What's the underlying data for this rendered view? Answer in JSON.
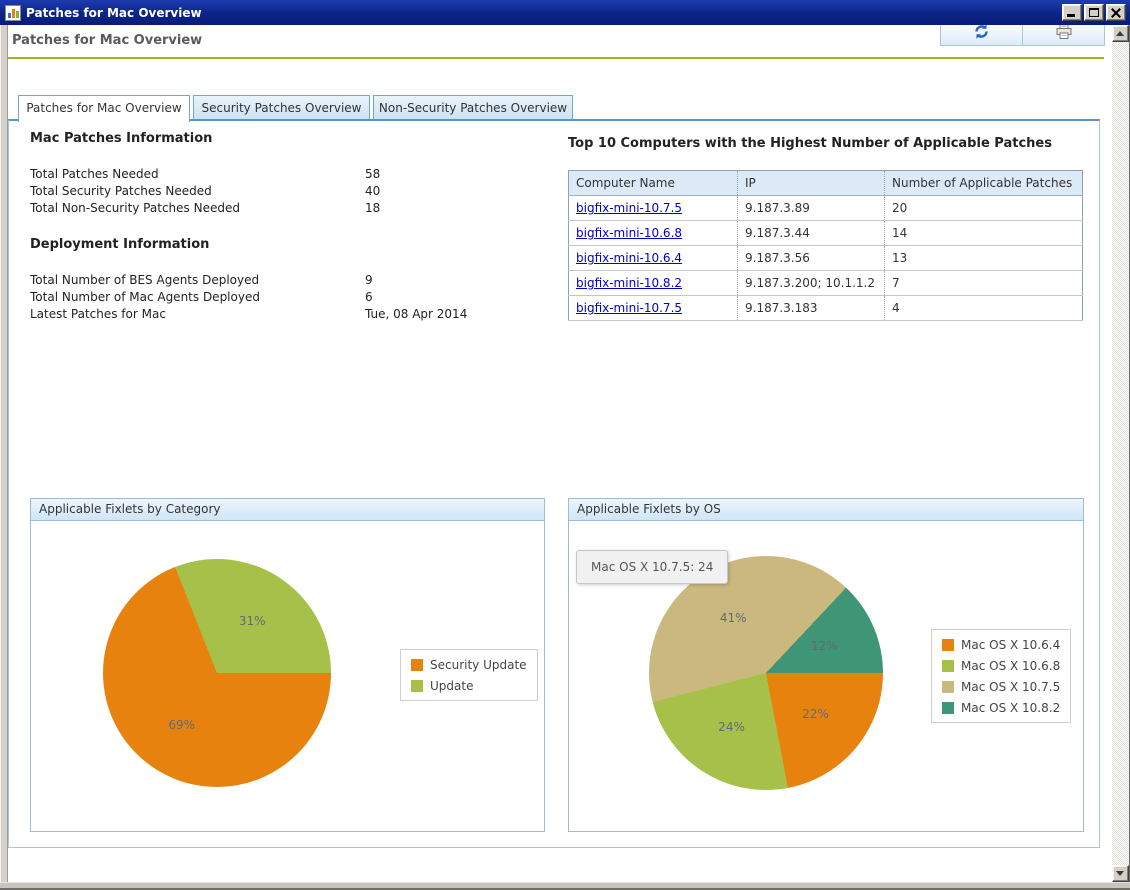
{
  "window": {
    "title": "Patches for Mac Overview"
  },
  "header": {
    "title": "Patches for Mac Overview"
  },
  "toolbar": {
    "icons": [
      "refresh-icon",
      "print-icon"
    ]
  },
  "tabs": [
    {
      "label": "Patches for Mac Overview",
      "active": true
    },
    {
      "label": "Security Patches Overview",
      "active": false
    },
    {
      "label": "Non-Security Patches Overview",
      "active": false
    }
  ],
  "info_sections": [
    {
      "title": "Mac Patches Information",
      "rows": [
        {
          "label": "Total Patches Needed",
          "value": "58"
        },
        {
          "label": "Total Security Patches Needed",
          "value": "40"
        },
        {
          "label": "Total Non-Security Patches Needed",
          "value": "18"
        }
      ]
    },
    {
      "title": "Deployment Information",
      "rows": [
        {
          "label": "Total Number of BES Agents Deployed",
          "value": "9"
        },
        {
          "label": "Total Number of Mac Agents Deployed",
          "value": "6"
        },
        {
          "label": "Latest Patches for Mac",
          "value": "Tue, 08 Apr 2014"
        }
      ]
    }
  ],
  "computers_table": {
    "title": "Top 10 Computers with the Highest Number of Applicable Patches",
    "columns": [
      "Computer Name",
      "IP",
      "Number of Applicable Patches"
    ],
    "rows": [
      {
        "name": "bigfix-mini-10.7.5",
        "ip": "9.187.3.89",
        "patches": "20"
      },
      {
        "name": "bigfix-mini-10.6.8",
        "ip": "9.187.3.44",
        "patches": "14"
      },
      {
        "name": "bigfix-mini-10.6.4",
        "ip": "9.187.3.56",
        "patches": "13"
      },
      {
        "name": "bigfix-mini-10.8.2",
        "ip": "9.187.3.200; 10.1.1.2",
        "patches": "7"
      },
      {
        "name": "bigfix-mini-10.7.5",
        "ip": "9.187.3.183",
        "patches": "4"
      }
    ]
  },
  "chart_data": [
    {
      "type": "pie",
      "title": "Applicable Fixlets by Category",
      "legend_position": "right",
      "start": "east-clockwise",
      "slices": [
        {
          "label": "Security Update",
          "percent": 69,
          "color": "#e8820e"
        },
        {
          "label": "Update",
          "percent": 31,
          "color": "#a6c04a"
        }
      ]
    },
    {
      "type": "pie",
      "title": "Applicable Fixlets by OS",
      "legend_position": "right",
      "start": "east-clockwise",
      "tooltip": "Mac OS X 10.7.5: 24",
      "slices": [
        {
          "label": "Mac OS X 10.6.4",
          "percent": 22,
          "color": "#e8820e"
        },
        {
          "label": "Mac OS X 10.6.8",
          "percent": 24,
          "color": "#a6c04a"
        },
        {
          "label": "Mac OS X 10.7.5",
          "percent": 41,
          "color": "#cbb87f"
        },
        {
          "label": "Mac OS X 10.8.2",
          "percent": 12,
          "color": "#3e9677"
        }
      ]
    }
  ],
  "accent_colors": {
    "header_divider": "#9cb716",
    "link": "#0000cc",
    "titlebar": "#0c2488"
  }
}
